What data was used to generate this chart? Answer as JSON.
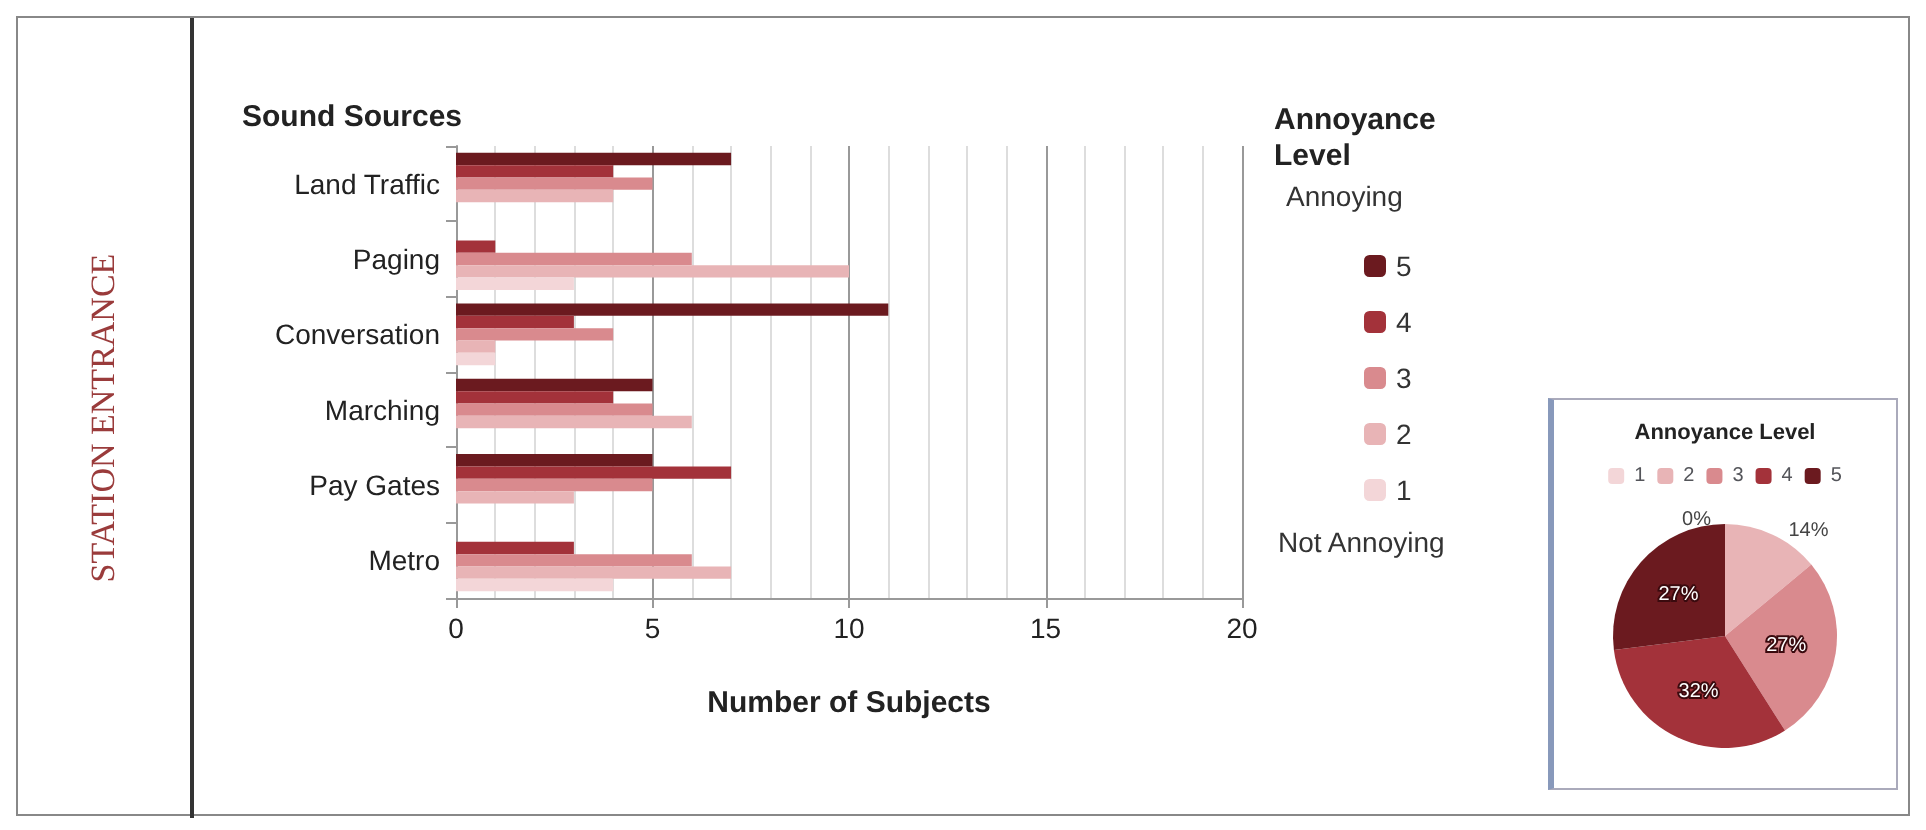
{
  "chart_data": [
    {
      "type": "bar",
      "orientation": "horizontal",
      "xlabel": "Number of Subjects",
      "ylabel": "Sound Sources",
      "legend_title": "Annoyance Level",
      "legend": "right",
      "grid": "x",
      "categories": [
        "Land Traffic",
        "Paging",
        "Conversation",
        "Marching",
        "Pay Gates",
        "Metro"
      ],
      "xlim": [
        0,
        20
      ],
      "xticks": [
        0,
        5,
        10,
        15,
        20
      ],
      "annotations": [
        "STATION ENTRANCE",
        "Annoying",
        "Not Annoying"
      ],
      "series": [
        {
          "name": "5",
          "color": "#6b1a1f",
          "values": [
            7,
            0,
            11,
            5,
            5,
            0
          ]
        },
        {
          "name": "4",
          "color": "#a3323a",
          "values": [
            4,
            1,
            3,
            4,
            7,
            3
          ]
        },
        {
          "name": "3",
          "color": "#d98a8e",
          "values": [
            5,
            6,
            4,
            5,
            5,
            6
          ]
        },
        {
          "name": "2",
          "color": "#e8b4b6",
          "values": [
            4,
            10,
            1,
            6,
            3,
            7
          ]
        },
        {
          "name": "1",
          "color": "#f3d6d8",
          "values": [
            0,
            3,
            1,
            0,
            0,
            4
          ]
        }
      ]
    },
    {
      "type": "pie",
      "title": "Annoyance Level",
      "legend": "top",
      "categories": [
        "1",
        "2",
        "3",
        "4",
        "5"
      ],
      "values": [
        0,
        14,
        27,
        32,
        27
      ],
      "colors": [
        "#f3d6d8",
        "#e8b4b6",
        "#d98a8e",
        "#a3323a",
        "#6b1a1f"
      ],
      "value_labels": [
        "0%",
        "14%",
        "27%",
        "32%",
        "27%"
      ]
    }
  ]
}
